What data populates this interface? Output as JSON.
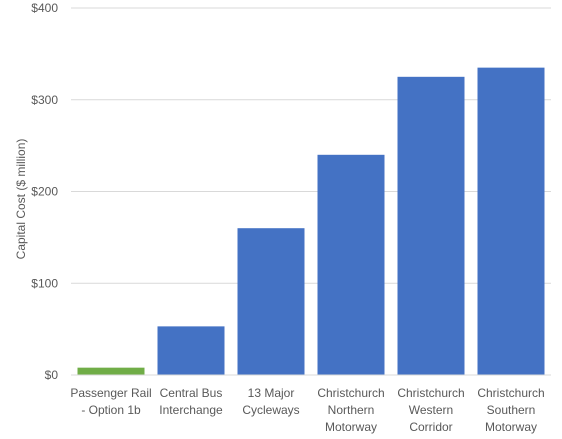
{
  "chart_data": {
    "type": "bar",
    "title": "",
    "xlabel": "",
    "ylabel": "Capital Cost ($ million)",
    "ylim": [
      0,
      400
    ],
    "yticks": [
      {
        "value": 0,
        "label": "$0"
      },
      {
        "value": 100,
        "label": "$100"
      },
      {
        "value": 200,
        "label": "$200"
      },
      {
        "value": 300,
        "label": "$300"
      },
      {
        "value": 400,
        "label": "$400"
      }
    ],
    "grid": true,
    "categories": [
      [
        "Passenger Rail",
        "- Option 1b"
      ],
      [
        "Central Bus",
        "Interchange"
      ],
      [
        "13 Major",
        "Cycleways"
      ],
      [
        "Christchurch",
        "Northern",
        "Motorway"
      ],
      [
        "Christchurch",
        "Western",
        "Corridor"
      ],
      [
        "Christchurch",
        "Southern",
        "Motorway"
      ]
    ],
    "values": [
      8,
      53,
      160,
      240,
      325,
      335
    ],
    "colors": [
      "#70ad47",
      "#4472c4",
      "#4472c4",
      "#4472c4",
      "#4472c4",
      "#4472c4"
    ],
    "gridline_color": "#d9d9d9"
  }
}
